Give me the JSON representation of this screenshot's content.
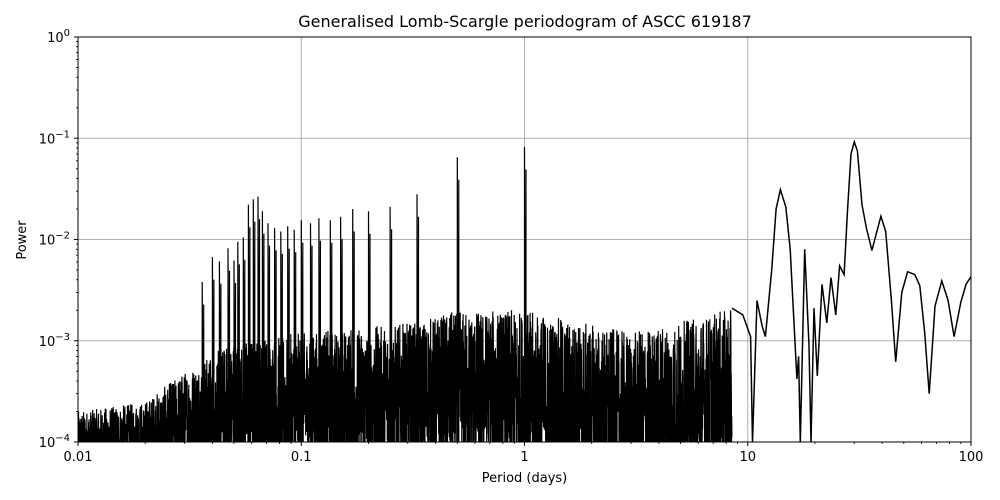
{
  "chart_data": {
    "type": "line",
    "title": "Generalised Lomb-Scargle periodogram of ASCC 619187",
    "xlabel": "Period (days)",
    "ylabel": "Power",
    "xscale": "log",
    "yscale": "log",
    "xlim": [
      0.01,
      100
    ],
    "ylim": [
      0.0001,
      1
    ],
    "grid": true,
    "legend": null,
    "x_ticks": [
      {
        "value": 0.01,
        "label": "0.01"
      },
      {
        "value": 0.1,
        "label": "0.1"
      },
      {
        "value": 1,
        "label": "1"
      },
      {
        "value": 10,
        "label": "10"
      },
      {
        "value": 100,
        "label": "100"
      }
    ],
    "y_ticks": [
      {
        "value": 0.0001,
        "base": "10",
        "exp": "−4"
      },
      {
        "value": 0.001,
        "base": "10",
        "exp": "−3"
      },
      {
        "value": 0.01,
        "base": "10",
        "exp": "−2"
      },
      {
        "value": 0.1,
        "base": "10",
        "exp": "−1"
      },
      {
        "value": 1,
        "base": "10",
        "exp": "0"
      }
    ],
    "line_color": "#000000",
    "grid_color": "#b0b0b0",
    "notable_peaks": [
      {
        "period": 0.5,
        "power": 0.065
      },
      {
        "period": 1.0,
        "power": 0.082
      },
      {
        "period": 14.0,
        "power": 0.031
      },
      {
        "period": 30.0,
        "power": 0.092
      },
      {
        "period": 40.0,
        "power": 0.017
      }
    ],
    "noise_envelope": {
      "description": "dense noisy forest of alias peaks from 0.01 to ~10 d; upper envelope rises from ~2e-4 at 0.01 d to ~1e-3 at 0.1 d, alias spikes reach ~2e-2 between 0.05 and 0.5 d",
      "points": [
        {
          "period": 0.01,
          "power": 0.0002
        },
        {
          "period": 0.02,
          "power": 0.00025
        },
        {
          "period": 0.03,
          "power": 0.0005
        },
        {
          "period": 0.05,
          "power": 0.001
        },
        {
          "period": 0.1,
          "power": 0.0012
        },
        {
          "period": 0.3,
          "power": 0.0015
        },
        {
          "period": 0.5,
          "power": 0.002
        },
        {
          "period": 1.0,
          "power": 0.002
        },
        {
          "period": 3.0,
          "power": 0.0012
        },
        {
          "period": 8.0,
          "power": 0.002
        }
      ]
    },
    "alias_spikes": [
      {
        "period": 0.036,
        "power": 0.0038
      },
      {
        "period": 0.04,
        "power": 0.0067
      },
      {
        "period": 0.043,
        "power": 0.0061
      },
      {
        "period": 0.047,
        "power": 0.0082
      },
      {
        "period": 0.05,
        "power": 0.0062
      },
      {
        "period": 0.052,
        "power": 0.0095
      },
      {
        "period": 0.055,
        "power": 0.0105
      },
      {
        "period": 0.058,
        "power": 0.022
      },
      {
        "period": 0.061,
        "power": 0.025
      },
      {
        "period": 0.064,
        "power": 0.0265
      },
      {
        "period": 0.067,
        "power": 0.019
      },
      {
        "period": 0.071,
        "power": 0.0145
      },
      {
        "period": 0.076,
        "power": 0.013
      },
      {
        "period": 0.081,
        "power": 0.012
      },
      {
        "period": 0.087,
        "power": 0.0135
      },
      {
        "period": 0.093,
        "power": 0.0125
      },
      {
        "period": 0.1,
        "power": 0.0155
      },
      {
        "period": 0.11,
        "power": 0.0145
      },
      {
        "period": 0.12,
        "power": 0.0162
      },
      {
        "period": 0.135,
        "power": 0.0155
      },
      {
        "period": 0.15,
        "power": 0.0168
      },
      {
        "period": 0.17,
        "power": 0.02
      },
      {
        "period": 0.2,
        "power": 0.019
      },
      {
        "period": 0.25,
        "power": 0.021
      },
      {
        "period": 0.33,
        "power": 0.028
      },
      {
        "period": 0.5,
        "power": 0.065
      },
      {
        "period": 1.0,
        "power": 0.082
      }
    ],
    "smooth_long_period_curve": [
      {
        "period": 8.5,
        "power": 0.0021
      },
      {
        "period": 9.5,
        "power": 0.0018
      },
      {
        "period": 10.3,
        "power": 0.0011
      },
      {
        "period": 10.5,
        "power": 0.0001
      },
      {
        "period": 11.0,
        "power": 0.0025
      },
      {
        "period": 11.6,
        "power": 0.0014
      },
      {
        "period": 12.0,
        "power": 0.0011
      },
      {
        "period": 12.8,
        "power": 0.005
      },
      {
        "period": 13.4,
        "power": 0.02
      },
      {
        "period": 14.0,
        "power": 0.031
      },
      {
        "period": 14.8,
        "power": 0.021
      },
      {
        "period": 15.5,
        "power": 0.008
      },
      {
        "period": 16.2,
        "power": 0.0012
      },
      {
        "period": 16.6,
        "power": 0.00042
      },
      {
        "period": 16.9,
        "power": 0.0007
      },
      {
        "period": 17.2,
        "power": 0.0001
      },
      {
        "period": 18.0,
        "power": 0.008
      },
      {
        "period": 18.8,
        "power": 0.0009
      },
      {
        "period": 19.2,
        "power": 0.0001
      },
      {
        "period": 19.8,
        "power": 0.0021
      },
      {
        "period": 20.5,
        "power": 0.00045
      },
      {
        "period": 21.5,
        "power": 0.0036
      },
      {
        "period": 22.6,
        "power": 0.0015
      },
      {
        "period": 23.6,
        "power": 0.0042
      },
      {
        "period": 24.8,
        "power": 0.0018
      },
      {
        "period": 25.8,
        "power": 0.0055
      },
      {
        "period": 27.0,
        "power": 0.0045
      },
      {
        "period": 28.0,
        "power": 0.02
      },
      {
        "period": 29.0,
        "power": 0.07
      },
      {
        "period": 30.0,
        "power": 0.092
      },
      {
        "period": 31.0,
        "power": 0.075
      },
      {
        "period": 32.5,
        "power": 0.022
      },
      {
        "period": 34.0,
        "power": 0.013
      },
      {
        "period": 36.0,
        "power": 0.0078
      },
      {
        "period": 39.5,
        "power": 0.017
      },
      {
        "period": 41.5,
        "power": 0.012
      },
      {
        "period": 44.0,
        "power": 0.0025
      },
      {
        "period": 46.0,
        "power": 0.00062
      },
      {
        "period": 49.0,
        "power": 0.003
      },
      {
        "period": 52.0,
        "power": 0.0048
      },
      {
        "period": 56.0,
        "power": 0.0045
      },
      {
        "period": 59.0,
        "power": 0.0035
      },
      {
        "period": 62.0,
        "power": 0.0012
      },
      {
        "period": 65.0,
        "power": 0.0003
      },
      {
        "period": 69.0,
        "power": 0.0022
      },
      {
        "period": 74.0,
        "power": 0.0039
      },
      {
        "period": 79.0,
        "power": 0.0025
      },
      {
        "period": 84.0,
        "power": 0.0011
      },
      {
        "period": 90.0,
        "power": 0.0024
      },
      {
        "period": 95.0,
        "power": 0.0036
      },
      {
        "period": 100.0,
        "power": 0.0043
      }
    ]
  }
}
